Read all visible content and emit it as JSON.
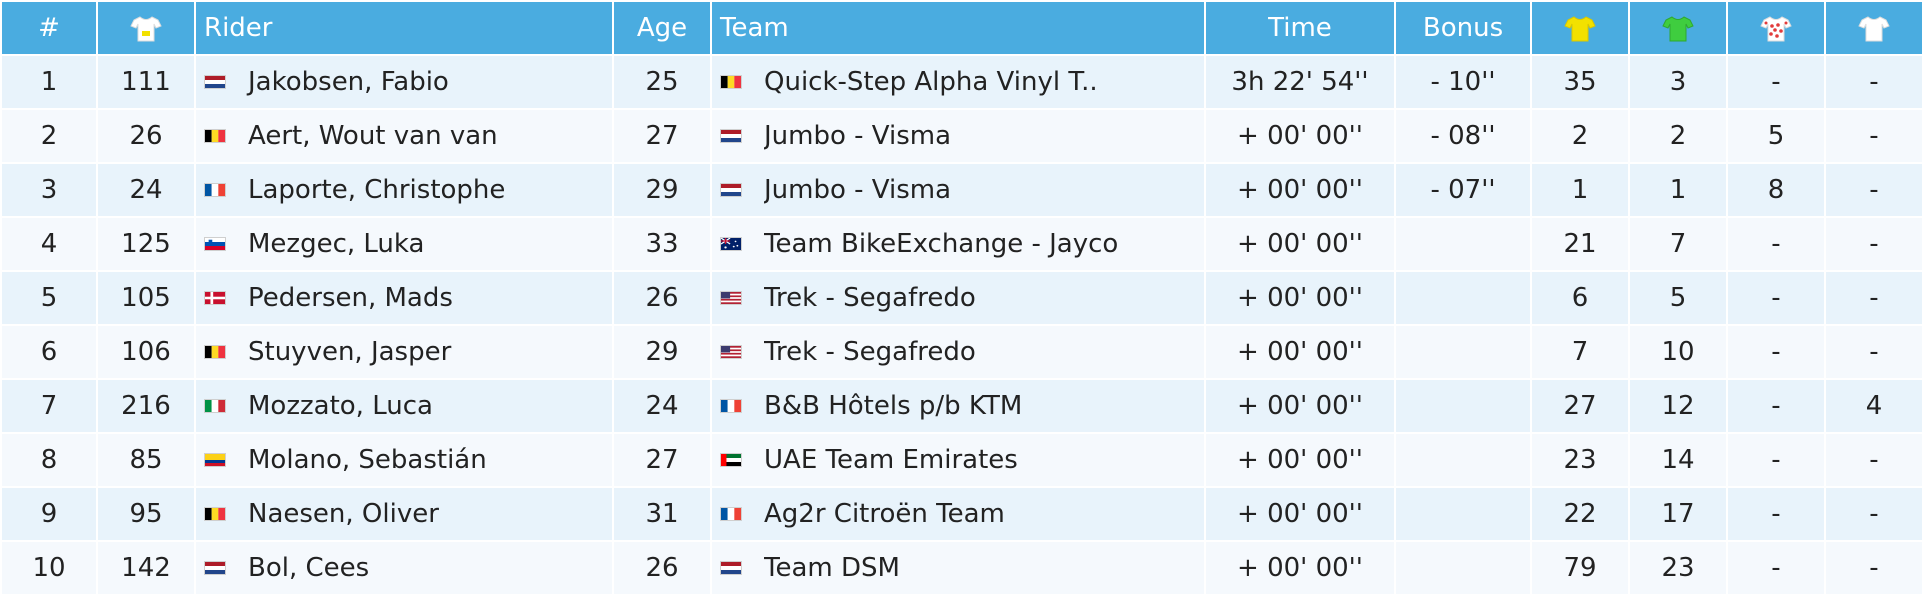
{
  "headers": {
    "pos": "#",
    "bib_icon": "white-jersey-with-number-icon",
    "rider": "Rider",
    "age": "Age",
    "team": "Team",
    "time": "Time",
    "bonus": "Bonus",
    "yellow_icon": "yellow-jersey-icon",
    "green_icon": "green-jersey-icon",
    "polka_icon": "polka-dot-jersey-icon",
    "white_icon": "white-jersey-icon"
  },
  "colors": {
    "header_bg": "#4aace0",
    "row_odd": "#e8f3fb",
    "row_even": "#f5f9fd",
    "yellow": "#f2e100",
    "green": "#3fcd3f",
    "polka": "#e23b3b",
    "white": "#ffffff"
  },
  "rows": [
    {
      "pos": "1",
      "bib": "111",
      "rider_flag": "nl",
      "rider": "Jakobsen, Fabio",
      "age": "25",
      "team_flag": "be",
      "team": "Quick-Step Alpha Vinyl T..",
      "time": "3h 22' 54''",
      "bonus": "- 10''",
      "yellow": "35",
      "green": "3",
      "polka": "-",
      "white": "-"
    },
    {
      "pos": "2",
      "bib": "26",
      "rider_flag": "be",
      "rider": "Aert, Wout van van",
      "age": "27",
      "team_flag": "nl",
      "team": "Jumbo - Visma",
      "time": "+ 00' 00''",
      "bonus": "- 08''",
      "yellow": "2",
      "green": "2",
      "polka": "5",
      "white": "-"
    },
    {
      "pos": "3",
      "bib": "24",
      "rider_flag": "fr",
      "rider": "Laporte, Christophe",
      "age": "29",
      "team_flag": "nl",
      "team": "Jumbo - Visma",
      "time": "+ 00' 00''",
      "bonus": "- 07''",
      "yellow": "1",
      "green": "1",
      "polka": "8",
      "white": "-"
    },
    {
      "pos": "4",
      "bib": "125",
      "rider_flag": "si",
      "rider": "Mezgec, Luka",
      "age": "33",
      "team_flag": "au",
      "team": "Team BikeExchange - Jayco",
      "time": "+ 00' 00''",
      "bonus": "",
      "yellow": "21",
      "green": "7",
      "polka": "-",
      "white": "-"
    },
    {
      "pos": "5",
      "bib": "105",
      "rider_flag": "dk",
      "rider": "Pedersen, Mads",
      "age": "26",
      "team_flag": "us",
      "team": "Trek - Segafredo",
      "time": "+ 00' 00''",
      "bonus": "",
      "yellow": "6",
      "green": "5",
      "polka": "-",
      "white": "-"
    },
    {
      "pos": "6",
      "bib": "106",
      "rider_flag": "be",
      "rider": "Stuyven, Jasper",
      "age": "29",
      "team_flag": "us",
      "team": "Trek - Segafredo",
      "time": "+ 00' 00''",
      "bonus": "",
      "yellow": "7",
      "green": "10",
      "polka": "-",
      "white": "-"
    },
    {
      "pos": "7",
      "bib": "216",
      "rider_flag": "it",
      "rider": "Mozzato, Luca",
      "age": "24",
      "team_flag": "fr",
      "team": "B&B Hôtels p/b KTM",
      "time": "+ 00' 00''",
      "bonus": "",
      "yellow": "27",
      "green": "12",
      "polka": "-",
      "white": "4"
    },
    {
      "pos": "8",
      "bib": "85",
      "rider_flag": "co",
      "rider": "Molano, Sebastián",
      "age": "27",
      "team_flag": "ae",
      "team": "UAE Team Emirates",
      "time": "+ 00' 00''",
      "bonus": "",
      "yellow": "23",
      "green": "14",
      "polka": "-",
      "white": "-"
    },
    {
      "pos": "9",
      "bib": "95",
      "rider_flag": "be",
      "rider": "Naesen, Oliver",
      "age": "31",
      "team_flag": "fr",
      "team": "Ag2r Citroën Team",
      "time": "+ 00' 00''",
      "bonus": "",
      "yellow": "22",
      "green": "17",
      "polka": "-",
      "white": "-"
    },
    {
      "pos": "10",
      "bib": "142",
      "rider_flag": "nl",
      "rider": "Bol, Cees",
      "age": "26",
      "team_flag": "nl",
      "team": "Team DSM",
      "time": "+ 00' 00''",
      "bonus": "",
      "yellow": "79",
      "green": "23",
      "polka": "-",
      "white": "-"
    }
  ]
}
